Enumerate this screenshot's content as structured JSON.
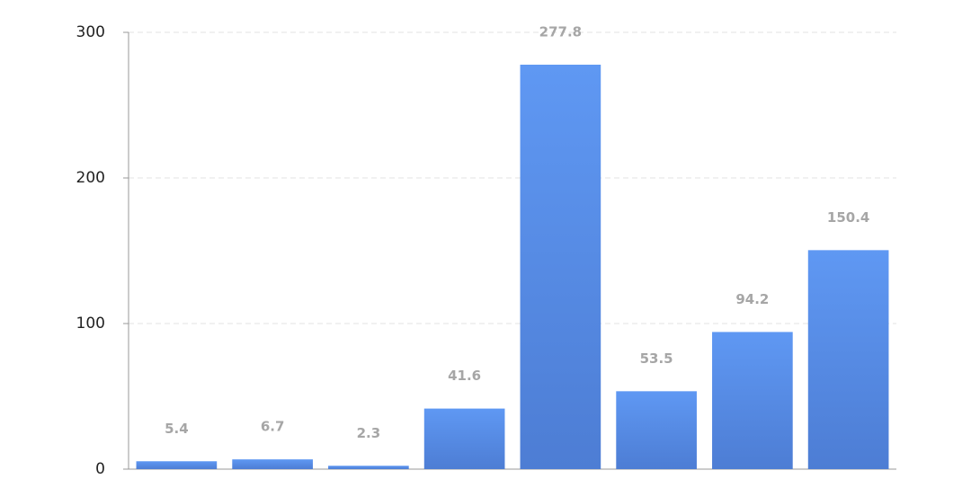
{
  "chart_data": {
    "type": "bar",
    "categories": [
      null,
      null,
      null,
      null,
      null,
      null,
      null,
      null
    ],
    "values": [
      5.4,
      6.7,
      2.3,
      41.6,
      277.8,
      53.5,
      94.2,
      150.4
    ],
    "color": "#5a8eea",
    "ylim": [
      0,
      300
    ],
    "yticks": [
      0,
      100,
      200,
      300
    ],
    "grid": true
  }
}
